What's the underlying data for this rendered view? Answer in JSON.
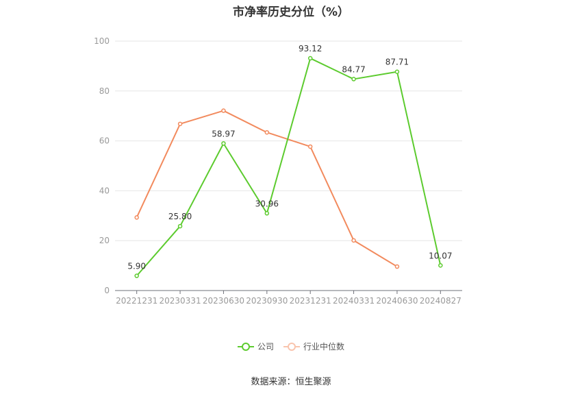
{
  "chart_data": {
    "type": "line",
    "title": "市净率历史分位（%）",
    "categories": [
      "20221231",
      "20230331",
      "20230630",
      "20230930",
      "20231231",
      "20240331",
      "20240630",
      "20240827"
    ],
    "ylim": [
      0,
      100
    ],
    "yticks": [
      0,
      20,
      40,
      60,
      80,
      100
    ],
    "grid": true,
    "legend_position": "bottom",
    "series": [
      {
        "name": "公司",
        "color": "#5ccb2e",
        "values": [
          5.9,
          25.8,
          58.97,
          30.96,
          93.12,
          84.77,
          87.71,
          10.07
        ],
        "labels": [
          "5.90",
          "25.80",
          "58.97",
          "30.96",
          "93.12",
          "84.77",
          "87.71",
          "10.07"
        ]
      },
      {
        "name": "行业中位数",
        "color": "#f28a5d",
        "values": [
          29.3,
          66.8,
          72.1,
          63.4,
          57.7,
          20.1,
          9.6,
          null
        ]
      }
    ]
  },
  "source": "数据来源：恒生聚源"
}
